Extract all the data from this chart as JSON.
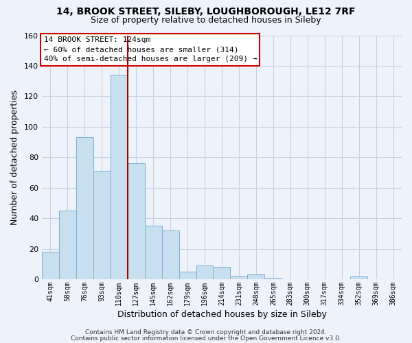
{
  "title": "14, BROOK STREET, SILEBY, LOUGHBOROUGH, LE12 7RF",
  "subtitle": "Size of property relative to detached houses in Sileby",
  "xlabel": "Distribution of detached houses by size in Sileby",
  "ylabel": "Number of detached properties",
  "bar_color": "#c8dff0",
  "bar_edge_color": "#7aafd4",
  "background_color": "#eef2fa",
  "plot_bg_color": "#eef2fa",
  "tick_labels": [
    "41sqm",
    "58sqm",
    "76sqm",
    "93sqm",
    "110sqm",
    "127sqm",
    "145sqm",
    "162sqm",
    "179sqm",
    "196sqm",
    "214sqm",
    "231sqm",
    "248sqm",
    "265sqm",
    "283sqm",
    "300sqm",
    "317sqm",
    "334sqm",
    "352sqm",
    "369sqm",
    "386sqm"
  ],
  "bar_values": [
    18,
    45,
    93,
    71,
    134,
    76,
    35,
    32,
    5,
    9,
    8,
    2,
    3,
    1,
    0,
    0,
    0,
    0,
    2,
    0,
    0
  ],
  "ylim": [
    0,
    160
  ],
  "yticks": [
    0,
    20,
    40,
    60,
    80,
    100,
    120,
    140,
    160
  ],
  "property_line_x": 4.5,
  "property_line_color": "#aa0000",
  "annotation_title": "14 BROOK STREET: 124sqm",
  "annotation_line1": "← 60% of detached houses are smaller (314)",
  "annotation_line2": "40% of semi-detached houses are larger (209) →",
  "annotation_box_color": "#ffffff",
  "annotation_box_edge": "#cc0000",
  "footer1": "Contains HM Land Registry data © Crown copyright and database right 2024.",
  "footer2": "Contains public sector information licensed under the Open Government Licence v3.0."
}
